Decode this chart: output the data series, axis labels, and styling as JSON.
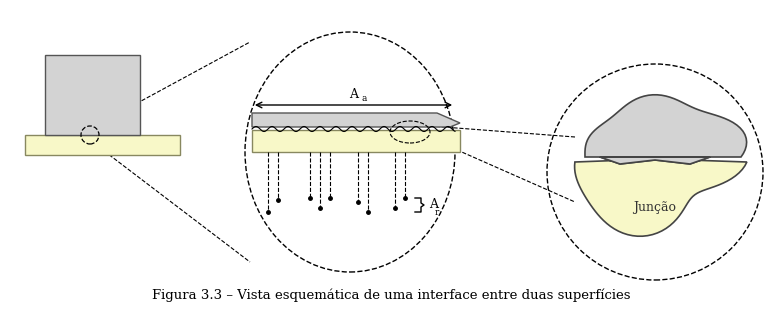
{
  "bg_color": "#ffffff",
  "gray_color": "#d3d3d3",
  "yellow_color": "#f8f8c8",
  "dark_outline": "#444444",
  "olive_outline": "#888860",
  "caption": "Figura 3.3 – Vista esquemática de uma interface entre duas superfícies",
  "caption_fontsize": 9.5,
  "juncao_label": "Junção",
  "Aa_label": "A",
  "Aa_sub": "a",
  "Ar_label": "A",
  "Ar_sub": "r"
}
